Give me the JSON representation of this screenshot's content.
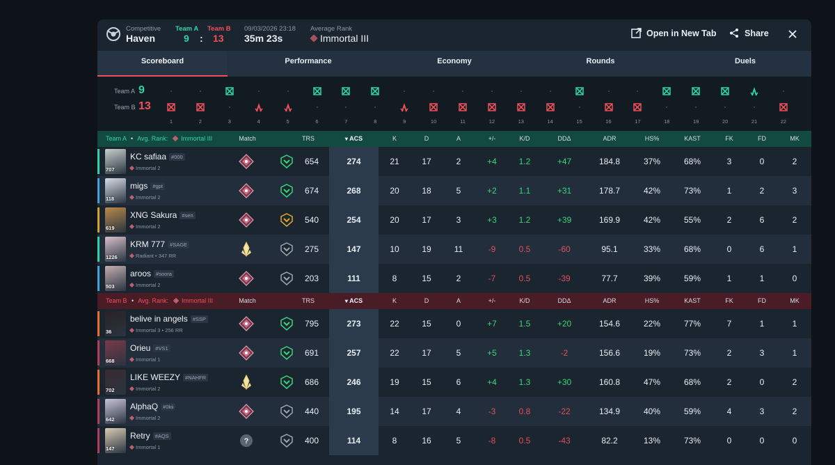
{
  "header": {
    "mode_label": "Competitive",
    "map": "Haven",
    "team_a_label": "Team A",
    "team_b_label": "Team B",
    "team_a_score": "9",
    "score_sep": ":",
    "team_b_score": "13",
    "datetime": "09/03/2026 23:18",
    "duration": "35m 23s",
    "avg_rank_label": "Average Rank",
    "avg_rank": "Immortal III",
    "open_new_tab": "Open in New Tab",
    "share": "Share"
  },
  "tabs": [
    "Scoreboard",
    "Performance",
    "Economy",
    "Rounds",
    "Duels"
  ],
  "timeline": {
    "team_a_label": "Team A",
    "team_a_score": "9",
    "team_b_label": "Team B",
    "team_b_score": "13",
    "rounds": [
      {
        "n": "1",
        "winner": "B",
        "icon": "elim"
      },
      {
        "n": "2",
        "winner": "B",
        "icon": "elim"
      },
      {
        "n": "3",
        "winner": "A",
        "icon": "elim"
      },
      {
        "n": "4",
        "winner": "B",
        "icon": "spike"
      },
      {
        "n": "5",
        "winner": "B",
        "icon": "spike"
      },
      {
        "n": "6",
        "winner": "A",
        "icon": "elim"
      },
      {
        "n": "7",
        "winner": "A",
        "icon": "elim"
      },
      {
        "n": "8",
        "winner": "A",
        "icon": "elim"
      },
      {
        "n": "9",
        "winner": "B",
        "icon": "spike"
      },
      {
        "n": "10",
        "winner": "B",
        "icon": "elim"
      },
      {
        "n": "11",
        "winner": "B",
        "icon": "elim"
      },
      {
        "n": "12",
        "winner": "B",
        "icon": "elim"
      },
      {
        "n": "13",
        "winner": "B",
        "icon": "elim"
      },
      {
        "n": "14",
        "winner": "B",
        "icon": "elim"
      },
      {
        "n": "15",
        "winner": "A",
        "icon": "elim"
      },
      {
        "n": "16",
        "winner": "B",
        "icon": "elim"
      },
      {
        "n": "17",
        "winner": "B",
        "icon": "elim"
      },
      {
        "n": "18",
        "winner": "A",
        "icon": "elim"
      },
      {
        "n": "19",
        "winner": "A",
        "icon": "elim"
      },
      {
        "n": "20",
        "winner": "A",
        "icon": "elim"
      },
      {
        "n": "21",
        "winner": "A",
        "icon": "spike"
      },
      {
        "n": "22",
        "winner": "B",
        "icon": "elim"
      }
    ]
  },
  "columns": [
    "Match Rank",
    "TRS",
    "ACS",
    "K",
    "D",
    "A",
    "+/-",
    "K/D",
    "DDΔ",
    "ADR",
    "HS%",
    "KAST",
    "FK",
    "FD",
    "MK"
  ],
  "team_a": {
    "name": "Team A",
    "sep": "•",
    "avg_rank_label": "Avg. Rank:",
    "avg_rank": "Immortal III",
    "color": "#2dd4a8",
    "players": [
      {
        "name": "KC safiaa",
        "tag": "#000",
        "rank": "Immortal 2",
        "level": "707",
        "stripe": "#2dd4a8",
        "avatar": "#c8d0cc",
        "match_rank": "immortal",
        "trs_tier": "green",
        "trs": "654",
        "acs": "274",
        "k": "21",
        "d": "17",
        "a": "2",
        "pm": "+4",
        "kd": "1.2",
        "dd": "+47",
        "adr": "184.8",
        "hs": "37%",
        "kast": "68%",
        "fk": "3",
        "fd": "0",
        "mk": "2"
      },
      {
        "name": "migs",
        "tag": "#gpt",
        "rank": "Immortal 2",
        "level": "118",
        "stripe": "#3aa3e0",
        "avatar": "#d9dde8",
        "match_rank": "immortal",
        "trs_tier": "green",
        "trs": "674",
        "acs": "268",
        "k": "20",
        "d": "18",
        "a": "5",
        "pm": "+2",
        "kd": "1.1",
        "dd": "+31",
        "adr": "178.7",
        "hs": "42%",
        "kast": "73%",
        "fk": "1",
        "fd": "2",
        "mk": "3"
      },
      {
        "name": "XNG Sakura",
        "tag": "#sen",
        "rank": "Immortal 2",
        "level": "619",
        "stripe": "#d4a030",
        "avatar": "#b88a4a",
        "match_rank": "immortal",
        "trs_tier": "gold",
        "trs": "540",
        "acs": "254",
        "k": "20",
        "d": "17",
        "a": "3",
        "pm": "+3",
        "kd": "1.2",
        "dd": "+39",
        "adr": "169.9",
        "hs": "42%",
        "kast": "55%",
        "fk": "2",
        "fd": "6",
        "mk": "2"
      },
      {
        "name": "KRM 777",
        "tag": "#SAGE",
        "rank": "Radiant • 347 RR",
        "level": "1226",
        "stripe": "#2dd4a8",
        "avatar": "#d8c0c8",
        "match_rank": "radiant",
        "trs_tier": "grey",
        "trs": "275",
        "acs": "147",
        "k": "10",
        "d": "19",
        "a": "11",
        "pm": "-9",
        "kd": "0.5",
        "dd": "-60",
        "adr": "95.1",
        "hs": "33%",
        "kast": "68%",
        "fk": "0",
        "fd": "6",
        "mk": "1"
      },
      {
        "name": "aroos",
        "tag": "#soora",
        "rank": "Immortal 2",
        "level": "503",
        "stripe": "#3aa3e0",
        "avatar": "#c4aeb0",
        "match_rank": "immortal",
        "trs_tier": "grey",
        "trs": "203",
        "acs": "111",
        "k": "8",
        "d": "15",
        "a": "2",
        "pm": "-7",
        "kd": "0.5",
        "dd": "-39",
        "adr": "77.7",
        "hs": "39%",
        "kast": "59%",
        "fk": "1",
        "fd": "1",
        "mk": "0"
      }
    ]
  },
  "team_b": {
    "name": "Team B",
    "sep": "•",
    "avg_rank_label": "Avg. Rank:",
    "avg_rank": "Immortal III",
    "color": "#f0505a",
    "players": [
      {
        "name": "belive in angels",
        "tag": "#SSP",
        "rank": "Immortal 3 • 256 RR",
        "level": "36",
        "stripe": "#e8702a",
        "avatar": "#2a2226",
        "match_rank": "immortal",
        "trs_tier": "green",
        "trs": "795",
        "acs": "273",
        "k": "22",
        "d": "15",
        "a": "0",
        "pm": "+7",
        "kd": "1.5",
        "dd": "+20",
        "adr": "154.6",
        "hs": "22%",
        "kast": "77%",
        "fk": "7",
        "fd": "1",
        "mk": "1"
      },
      {
        "name": "Orieu",
        "tag": "#VS1",
        "rank": "Immortal 1",
        "level": "668",
        "stripe": "#b0405a",
        "avatar": "#7a3a48",
        "match_rank": "immortal",
        "trs_tier": "green",
        "trs": "691",
        "acs": "257",
        "k": "22",
        "d": "17",
        "a": "5",
        "pm": "+5",
        "kd": "1.3",
        "dd": "-2",
        "adr": "156.6",
        "hs": "19%",
        "kast": "73%",
        "fk": "2",
        "fd": "3",
        "mk": "1"
      },
      {
        "name": "LIKE WEEZY",
        "tag": "#NAHFR",
        "rank": "Immortal 2",
        "level": "702",
        "stripe": "#e8702a",
        "avatar": "#3a2a30",
        "match_rank": "radiant",
        "trs_tier": "green",
        "trs": "686",
        "acs": "246",
        "k": "19",
        "d": "15",
        "a": "6",
        "pm": "+4",
        "kd": "1.3",
        "dd": "+30",
        "adr": "160.8",
        "hs": "47%",
        "kast": "68%",
        "fk": "2",
        "fd": "0",
        "mk": "2"
      },
      {
        "name": "AlphaQ",
        "tag": "#0kii",
        "rank": "Immortal 2",
        "level": "642",
        "stripe": "#b0405a",
        "avatar": "#c8c4d8",
        "match_rank": "immortal",
        "trs_tier": "grey",
        "trs": "440",
        "acs": "195",
        "k": "14",
        "d": "17",
        "a": "4",
        "pm": "-3",
        "kd": "0.8",
        "dd": "-22",
        "adr": "134.9",
        "hs": "40%",
        "kast": "59%",
        "fk": "4",
        "fd": "3",
        "mk": "2"
      },
      {
        "name": "Retry",
        "tag": "#AQS",
        "rank": "Immortal 1",
        "level": "147",
        "stripe": "#b0405a",
        "avatar": "#d8ccb4",
        "match_rank": "unknown",
        "trs_tier": "grey",
        "trs": "400",
        "acs": "114",
        "k": "8",
        "d": "16",
        "a": "5",
        "pm": "-8",
        "kd": "0.5",
        "dd": "-43",
        "adr": "82.2",
        "hs": "13%",
        "kast": "73%",
        "fk": "0",
        "fd": "0",
        "mk": "0"
      }
    ]
  },
  "colors": {
    "team_a": "#2dd4a8",
    "team_b": "#f0505a",
    "positive": "#37d67a",
    "negative": "#e0505a",
    "acs_highlight": "#2b3b4c"
  }
}
